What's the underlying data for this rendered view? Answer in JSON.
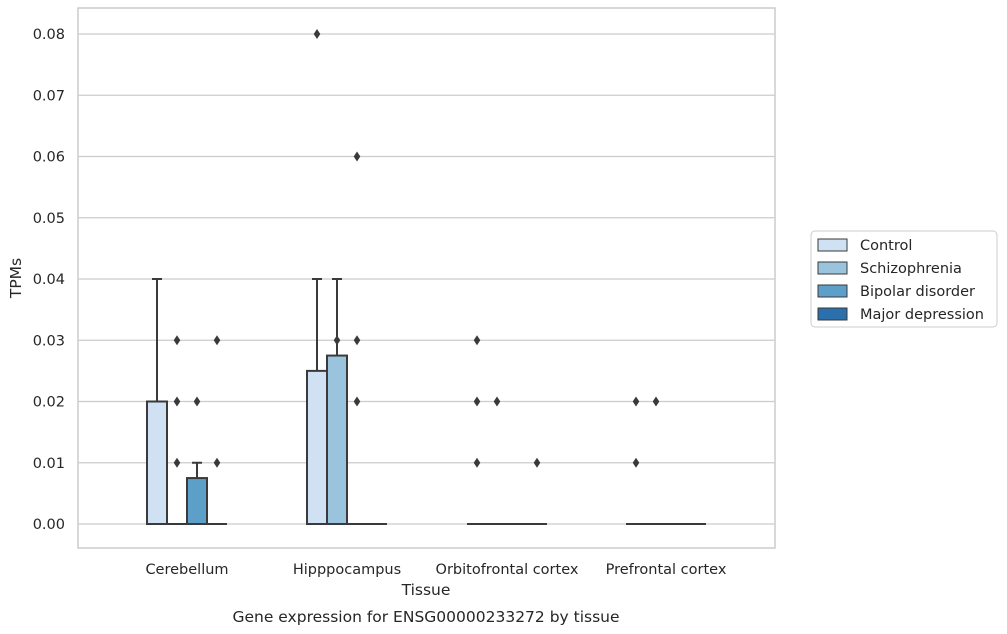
{
  "chart_data": {
    "type": "box",
    "title": "",
    "caption": "Gene expression for ENSG00000233272 by tissue",
    "xlabel": "Tissue",
    "ylabel": "TPMs",
    "ylim": [
      -0.004,
      0.084
    ],
    "yticks": [
      0.0,
      0.01,
      0.02,
      0.03,
      0.04,
      0.05,
      0.06,
      0.07,
      0.08
    ],
    "ytick_labels": [
      "0.00",
      "0.01",
      "0.02",
      "0.03",
      "0.04",
      "0.05",
      "0.06",
      "0.07",
      "0.08"
    ],
    "grid": "horizontal",
    "legend_position": "right",
    "categories": [
      "Cerebellum",
      "Hipppocampus",
      "Orbitofrontal cortex",
      "Prefrontal cortex"
    ],
    "series": [
      {
        "name": "Control",
        "color": "#cfe1f2",
        "boxes": [
          {
            "q1": 0.0,
            "median": 0.0,
            "q3": 0.02,
            "whisker_low": 0.0,
            "whisker_high": 0.04,
            "outliers": []
          },
          {
            "q1": 0.0,
            "median": 0.0,
            "q3": 0.025,
            "whisker_low": 0.0,
            "whisker_high": 0.04,
            "outliers": [
              0.08
            ]
          },
          {
            "q1": 0.0,
            "median": 0.0,
            "q3": 0.0,
            "whisker_low": 0.0,
            "whisker_high": 0.0,
            "outliers": [
              0.01,
              0.02,
              0.03
            ]
          },
          {
            "q1": 0.0,
            "median": 0.0,
            "q3": 0.0,
            "whisker_low": 0.0,
            "whisker_high": 0.0,
            "outliers": [
              0.01,
              0.02
            ]
          }
        ]
      },
      {
        "name": "Schizophrenia",
        "color": "#9ac4dd",
        "boxes": [
          {
            "q1": 0.0,
            "median": 0.0,
            "q3": 0.0,
            "whisker_low": 0.0,
            "whisker_high": 0.0,
            "outliers": [
              0.01,
              0.02,
              0.03
            ]
          },
          {
            "q1": 0.0,
            "median": 0.0,
            "q3": 0.0275,
            "whisker_low": 0.0,
            "whisker_high": 0.04,
            "outliers": [
              0.03
            ]
          },
          {
            "q1": 0.0,
            "median": 0.0,
            "q3": 0.0,
            "whisker_low": 0.0,
            "whisker_high": 0.0,
            "outliers": [
              0.02
            ]
          },
          {
            "q1": 0.0,
            "median": 0.0,
            "q3": 0.0,
            "whisker_low": 0.0,
            "whisker_high": 0.0,
            "outliers": [
              0.02
            ]
          }
        ]
      },
      {
        "name": "Bipolar disorder",
        "color": "#5c9fc9",
        "boxes": [
          {
            "q1": 0.0,
            "median": 0.0,
            "q3": 0.0075,
            "whisker_low": 0.0,
            "whisker_high": 0.01,
            "outliers": [
              0.02
            ]
          },
          {
            "q1": 0.0,
            "median": 0.0,
            "q3": 0.0,
            "whisker_low": 0.0,
            "whisker_high": 0.0,
            "outliers": [
              0.02,
              0.03,
              0.06
            ]
          },
          {
            "q1": 0.0,
            "median": 0.0,
            "q3": 0.0,
            "whisker_low": 0.0,
            "whisker_high": 0.0,
            "outliers": []
          },
          {
            "q1": 0.0,
            "median": 0.0,
            "q3": 0.0,
            "whisker_low": 0.0,
            "whisker_high": 0.0,
            "outliers": []
          }
        ]
      },
      {
        "name": "Major depression",
        "color": "#2b6fac",
        "boxes": [
          {
            "q1": 0.0,
            "median": 0.0,
            "q3": 0.0,
            "whisker_low": 0.0,
            "whisker_high": 0.0,
            "outliers": [
              0.01,
              0.03
            ]
          },
          {
            "q1": 0.0,
            "median": 0.0,
            "q3": 0.0,
            "whisker_low": 0.0,
            "whisker_high": 0.0,
            "outliers": []
          },
          {
            "q1": 0.0,
            "median": 0.0,
            "q3": 0.0,
            "whisker_low": 0.0,
            "whisker_high": 0.0,
            "outliers": [
              0.01
            ]
          },
          {
            "q1": 0.0,
            "median": 0.0,
            "q3": 0.0,
            "whisker_low": 0.0,
            "whisker_high": 0.0,
            "outliers": []
          }
        ]
      }
    ]
  }
}
